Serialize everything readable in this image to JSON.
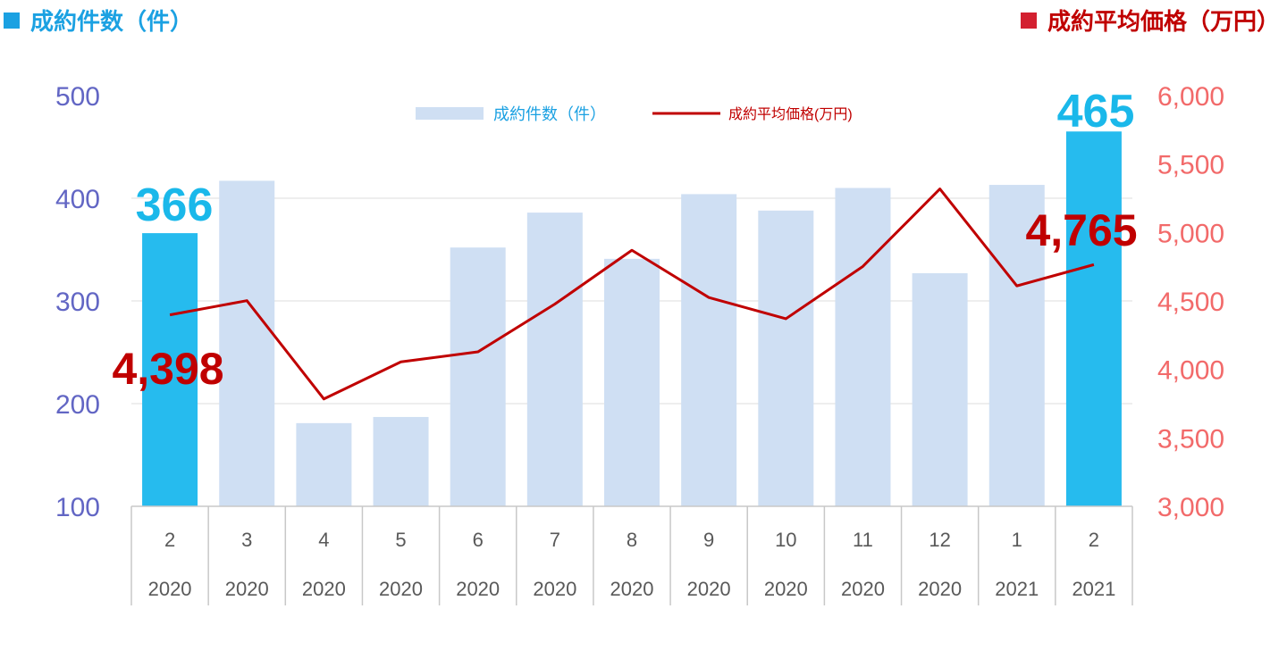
{
  "header": {
    "left_label": "成約件数（件）",
    "right_label": "成約平均価格（万円）"
  },
  "colors": {
    "bar_default": "#cfdff3",
    "bar_highlight": "#26bbee",
    "line": "#c00000",
    "left_axis": "#6266c4",
    "right_axis": "#f26a6a"
  },
  "chart_data": {
    "type": "bar+line",
    "categories": [
      "2",
      "3",
      "4",
      "5",
      "6",
      "7",
      "8",
      "9",
      "10",
      "11",
      "12",
      "1",
      "2"
    ],
    "years": [
      "2020",
      "2020",
      "2020",
      "2020",
      "2020",
      "2020",
      "2020",
      "2020",
      "2020",
      "2020",
      "2020",
      "2021",
      "2021"
    ],
    "series": [
      {
        "name": "成約件数（件）",
        "kind": "bar",
        "axis": "left",
        "values": [
          366,
          417,
          181,
          187,
          352,
          386,
          341,
          404,
          388,
          410,
          327,
          413,
          465
        ],
        "highlight": [
          0,
          12
        ]
      },
      {
        "name": "成約平均価格(万円)",
        "kind": "line",
        "axis": "right",
        "values": [
          4398,
          4502,
          3784,
          4055,
          4128,
          4477,
          4870,
          4525,
          4370,
          4752,
          5318,
          4610,
          4765
        ]
      }
    ],
    "left_axis": {
      "ylim": [
        100,
        500
      ],
      "ticks": [
        "500",
        "400",
        "300",
        "200",
        "100"
      ]
    },
    "right_axis": {
      "ylim": [
        3000,
        6000
      ],
      "ticks": [
        "6,000",
        "5,500",
        "5,000",
        "4,500",
        "4,000",
        "3,500",
        "3,000"
      ]
    },
    "annotations": {
      "first_bar_value": "366",
      "last_bar_value": "465",
      "first_line_value": "4,398",
      "last_line_value": "4,765"
    },
    "legend": {
      "bar_label": "成約件数（件）",
      "line_label": "成約平均価格(万円)"
    },
    "grid": true
  }
}
